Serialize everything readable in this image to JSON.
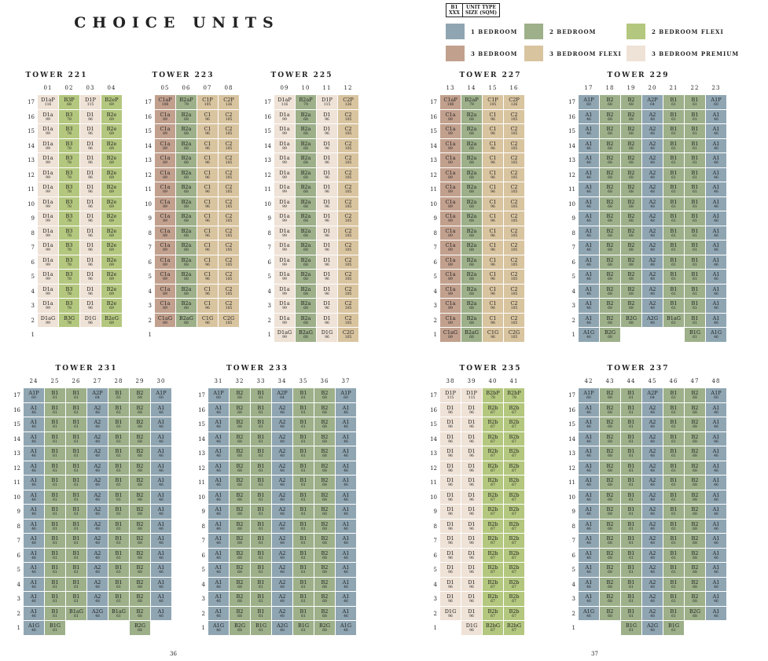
{
  "title": "CHOICE UNITS",
  "page_numbers": [
    "36",
    "37"
  ],
  "key": {
    "code": "B1",
    "size": "XXX",
    "type_label": "UNIT TYPE",
    "type_sub": "SIZE (SQM)"
  },
  "colors": {
    "1BR": "#8FA5B2",
    "2BR": "#9DB08A",
    "2BRF": "#B4C77F",
    "3BR": "#C2A08E",
    "3BRF": "#D9C4A0",
    "3BRP": "#EFE2D6"
  },
  "legend": [
    {
      "key": "1BR",
      "label": "1 BEDROOM"
    },
    {
      "key": "2BR",
      "label": "2 BEDROOM"
    },
    {
      "key": "2BRF",
      "label": "2 BEDROOM FLEXI"
    },
    {
      "key": "3BR",
      "label": "3 BEDROOM"
    },
    {
      "key": "3BRF",
      "label": "3 BEDROOM FLEXI"
    },
    {
      "key": "3BRP",
      "label": "3 BEDROOM PREMIUM"
    }
  ],
  "types": {
    "D1aP": {
      "size": "116",
      "c": "3BRP"
    },
    "D1a": {
      "size": "99",
      "c": "3BRP"
    },
    "D1aG": {
      "size": "99",
      "c": "3BRP"
    },
    "D1P": {
      "size": "115",
      "c": "3BRP"
    },
    "D1": {
      "size": "96",
      "c": "3BRP"
    },
    "D1G": {
      "size": "96",
      "c": "3BRP"
    },
    "B3P": {
      "size": "68",
      "c": "2BRF"
    },
    "B3": {
      "size": "78",
      "c": "2BRF"
    },
    "B3G": {
      "size": "78",
      "c": "2BRF"
    },
    "B2eP": {
      "size": "69",
      "c": "2BRF"
    },
    "B2e": {
      "size": "69",
      "c": "2BRF"
    },
    "B2eG": {
      "size": "69",
      "c": "2BRF"
    },
    "C1aP": {
      "size": "108",
      "c": "3BR"
    },
    "C1a": {
      "size": "89",
      "c": "3BR"
    },
    "C1aG": {
      "size": "89",
      "c": "3BR"
    },
    "B2aP": {
      "size": "79",
      "c": "2BR"
    },
    "B2a": {
      "size": "68",
      "c": "2BR"
    },
    "B2aG": {
      "size": "68",
      "c": "2BR"
    },
    "C1P": {
      "size": "105",
      "c": "3BRF"
    },
    "C1": {
      "size": "96",
      "c": "3BRF"
    },
    "C1G": {
      "size": "96",
      "c": "3BRF"
    },
    "C2P": {
      "size": "126",
      "c": "3BRF"
    },
    "C2": {
      "size": "105",
      "c": "3BRF"
    },
    "C2G": {
      "size": "105",
      "c": "3BRF"
    },
    "A1P": {
      "size": "60",
      "c": "1BR"
    },
    "A1": {
      "size": "46",
      "c": "1BR"
    },
    "A1G": {
      "size": "46",
      "c": "1BR"
    },
    "A2P": {
      "size": "64",
      "c": "1BR"
    },
    "A2": {
      "size": "48",
      "c": "1BR"
    },
    "A2G": {
      "size": "48",
      "c": "1BR"
    },
    "B2P": {
      "size": "68",
      "c": "2BR"
    },
    "B2": {
      "size": "68",
      "c": "2BR"
    },
    "B2G": {
      "size": "68",
      "c": "2BR"
    },
    "B1": {
      "size": "61",
      "c": "2BR"
    },
    "B1G": {
      "size": "61",
      "c": "2BR"
    },
    "B1aG": {
      "size": "61",
      "c": "2BR"
    },
    "B2bP": {
      "size": "78",
      "c": "2BRF"
    },
    "B2b": {
      "size": "67",
      "c": "2BRF"
    },
    "B2bG": {
      "size": "67",
      "c": "2BRF"
    }
  },
  "towers": [
    {
      "name": "TOWER 221",
      "stacks": [
        "01",
        "02",
        "03",
        "04"
      ],
      "top": [
        "D1aP",
        "B3P",
        "D1P",
        "B2eP"
      ],
      "mid": [
        "D1a",
        "B3",
        "D1",
        "B2e"
      ],
      "ground": [
        "D1aG",
        "B3G",
        "D1G",
        "B2eG"
      ],
      "floors": {
        "top": 17,
        "from": 16,
        "to": 3,
        "ground": 2,
        "lowest": 1
      }
    },
    {
      "name": "TOWER 223",
      "stacks": [
        "05",
        "06",
        "07",
        "08"
      ],
      "top": [
        "C1aP",
        "B2aP",
        "C1P",
        "C2P"
      ],
      "mid": [
        "C1a",
        "B2a",
        "C1",
        "C2"
      ],
      "ground": [
        "C1aG",
        "B2aG",
        "C1G",
        "C2G"
      ],
      "floors": {
        "top": 17,
        "from": 16,
        "to": 3,
        "ground": 2,
        "lowest": 1
      }
    },
    {
      "name": "TOWER 225",
      "stacks": [
        "09",
        "10",
        "11",
        "12"
      ],
      "top": [
        "D1aP",
        "B2aP",
        "D1P",
        "C2P"
      ],
      "mid": [
        "D1a",
        "B2a",
        "D1",
        "C2"
      ],
      "ground": [
        "D1aG",
        "B2aG",
        "D1G",
        "C2G"
      ],
      "floors": {
        "top": 17,
        "from": 16,
        "to": 2,
        "ground": 1,
        "lowest": null
      }
    },
    {
      "name": "TOWER 227",
      "stacks": [
        "13",
        "14",
        "15",
        "16"
      ],
      "top": [
        "C1aP",
        "B2aP",
        "C1P",
        "C2P"
      ],
      "mid": [
        "C1a",
        "B2a",
        "C1",
        "C2"
      ],
      "ground": [
        "C1aG",
        "B2aG",
        "C1G",
        "C2G"
      ],
      "floors": {
        "top": 17,
        "from": 16,
        "to": 2,
        "ground": 1,
        "lowest": null
      }
    },
    {
      "name": "TOWER 229",
      "stacks": [
        "17",
        "18",
        "19",
        "20",
        "21",
        "22",
        "23"
      ],
      "top": [
        "A1P",
        "B2",
        "B2",
        "A2P",
        "B1",
        "B1",
        "A1P"
      ],
      "mid": [
        "A1",
        "B2",
        "B2",
        "A2",
        "B1",
        "B1",
        "A1"
      ],
      "ground2": [
        "A1",
        "B2",
        "B2G",
        "A2G",
        "B1aG",
        "B1",
        "A1"
      ],
      "ground": [
        "A1G",
        "B2G",
        null,
        null,
        null,
        "B1G",
        "A1G"
      ],
      "floors": {
        "top": 17,
        "from": 16,
        "to": 3,
        "ground": 1,
        "lowest": null
      }
    },
    {
      "name": "TOWER 231",
      "stacks": [
        "24",
        "25",
        "26",
        "27",
        "28",
        "29",
        "30"
      ],
      "top": [
        "A1P",
        "B1",
        "B1",
        "A2P",
        "B1",
        "B2",
        "A1P"
      ],
      "mid": [
        "A1",
        "B1",
        "B1",
        "A2",
        "B1",
        "B2",
        "A1"
      ],
      "ground2": [
        "A1",
        "B1",
        "B1aG",
        "A2G",
        "B1aG",
        "B2",
        "A1"
      ],
      "ground": [
        "A1G",
        "B1G",
        null,
        null,
        null,
        "B2G",
        null
      ],
      "floors": {
        "top": 17,
        "from": 16,
        "to": 3,
        "ground": 1,
        "lowest": null
      }
    },
    {
      "name": "TOWER 233",
      "stacks": [
        "31",
        "32",
        "33",
        "34",
        "35",
        "36",
        "37"
      ],
      "top": [
        "A1P",
        "B2",
        "B1",
        "A2P",
        "B1",
        "B2",
        "A1P"
      ],
      "mid": [
        "A1",
        "B2",
        "B1",
        "A2",
        "B1",
        "B2",
        "A1"
      ],
      "ground": [
        "A1G",
        "B2G",
        "B1G",
        "A2G",
        "B1G",
        "B2G",
        "A1G"
      ],
      "floors": {
        "top": 17,
        "from": 16,
        "to": 2,
        "ground": 1,
        "lowest": null
      }
    },
    {
      "name": "TOWER 235",
      "stacks": [
        "38",
        "39",
        "40",
        "41"
      ],
      "top": [
        "D1P",
        "D1P",
        "B2bP",
        "B2bP"
      ],
      "mid": [
        "D1",
        "D1",
        "B2b",
        "B2b"
      ],
      "ground2": [
        "D1G",
        "D1",
        "B2b",
        "B2b"
      ],
      "ground": [
        null,
        "D1G",
        "B2bG",
        "B2bG"
      ],
      "floors": {
        "top": 17,
        "from": 16,
        "to": 3,
        "ground": 1,
        "lowest": null
      }
    },
    {
      "name": "TOWER 237",
      "stacks": [
        "42",
        "43",
        "44",
        "45",
        "46",
        "47",
        "48"
      ],
      "top": [
        "A1P",
        "B2",
        "B1",
        "A2P",
        "B1",
        "B2",
        "A1P"
      ],
      "mid": [
        "A1",
        "B2",
        "B1",
        "A2",
        "B1",
        "B2",
        "A1"
      ],
      "ground2": [
        "A1G",
        "B2",
        "B1",
        "A2",
        "B1",
        "B2G",
        "A1"
      ],
      "ground": [
        null,
        null,
        "B1G",
        "A2G",
        "B1G",
        null,
        null
      ],
      "floors": {
        "top": 17,
        "from": 16,
        "to": 3,
        "ground": 1,
        "lowest": null
      }
    }
  ]
}
